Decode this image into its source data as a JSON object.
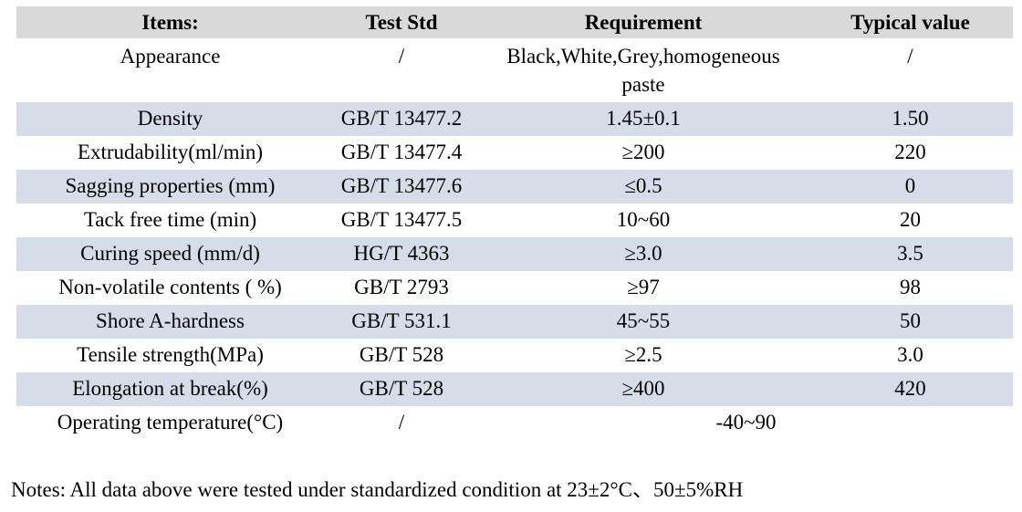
{
  "table": {
    "headers": {
      "item": "Items:",
      "test_std": "Test Std",
      "requirement": "Requirement",
      "typical": "Typical value"
    },
    "rows": [
      {
        "item": "Appearance",
        "test_std": "/",
        "requirement": "Black,White,Grey,homogeneous paste",
        "typical": "/"
      },
      {
        "item": "Density",
        "test_std": "GB/T 13477.2",
        "requirement": "1.45±0.1",
        "typical": "1.50"
      },
      {
        "item": "Extrudability(ml/min)",
        "test_std": "GB/T 13477.4",
        "requirement": "≥200",
        "typical": "220"
      },
      {
        "item": "Sagging properties (mm)",
        "test_std": "GB/T 13477.6",
        "requirement": "≤0.5",
        "typical": "0"
      },
      {
        "item": "Tack free time (min)",
        "test_std": "GB/T 13477.5",
        "requirement": "10~60",
        "typical": "20"
      },
      {
        "item": "Curing speed (mm/d)",
        "test_std": "HG/T 4363",
        "requirement": "≥3.0",
        "typical": "3.5"
      },
      {
        "item": "Non-volatile contents ( %)",
        "test_std": "GB/T 2793",
        "requirement": "≥97",
        "typical": "98"
      },
      {
        "item": "Shore A-hardness",
        "test_std": "GB/T 531.1",
        "requirement": "45~55",
        "typical": "50"
      },
      {
        "item": "Tensile strength(MPa)",
        "test_std": "GB/T 528",
        "requirement": "≥2.5",
        "typical": "3.0"
      },
      {
        "item": "Elongation at break(%)",
        "test_std": "GB/T 528",
        "requirement": "≥400",
        "typical": "420"
      },
      {
        "item": "Operating temperature(°C)",
        "test_std": "/",
        "requirement": "-40~90"
      }
    ]
  },
  "notes": "Notes: All data above were tested under standardized condition at 23±2°C、50±5%RH",
  "colors": {
    "header_bg": "#d9d9d9",
    "stripe_bg": "#d6dde8",
    "text": "#000000",
    "page_bg": "#ffffff"
  }
}
